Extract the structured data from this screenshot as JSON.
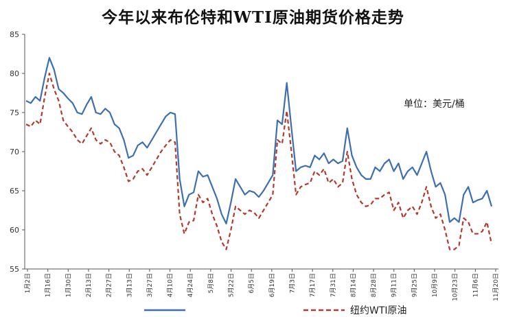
{
  "chart_data": {
    "type": "line",
    "title": "今年以来布伦特和WTI原油期货价格走势",
    "unit_label": "单位：美元/桶",
    "ylim": [
      55,
      85
    ],
    "y_ticks": [
      "55",
      "60",
      "65",
      "70",
      "75",
      "80",
      "85"
    ],
    "x_ticks": [
      "1月2日",
      "1月16日",
      "1月30日",
      "2月13日",
      "2月27日",
      "3月13日",
      "3月27日",
      "4月10日",
      "4月24日",
      "5月8日",
      "5月22日",
      "6月5日",
      "6月19日",
      "7月3日",
      "7月17日",
      "7月31日",
      "8月14日",
      "8月28日",
      "9月11日",
      "9月25日",
      "10月9日",
      "10月23日",
      "11月6日",
      "11月20日"
    ],
    "grid": false,
    "legend_position": "bottom",
    "series": [
      {
        "name": "",
        "color": "#3d6fb0",
        "style": "solid",
        "values": [
          76.5,
          76.2,
          77.0,
          76.5,
          79.5,
          82.0,
          80.5,
          78.0,
          77.5,
          76.8,
          76.2,
          75.0,
          74.8,
          76.0,
          77.0,
          75.0,
          74.8,
          75.5,
          75.0,
          73.5,
          73.0,
          71.5,
          69.2,
          69.5,
          70.8,
          71.2,
          70.5,
          71.5,
          72.5,
          73.5,
          74.5,
          75.0,
          74.8,
          66.5,
          63.0,
          64.5,
          64.8,
          67.5,
          66.8,
          67.0,
          65.5,
          64.0,
          62.0,
          60.8,
          63.5,
          66.5,
          65.5,
          64.5,
          65.0,
          64.8,
          64.2,
          65.0,
          66.0,
          67.0,
          74.0,
          73.5,
          78.8,
          73.0,
          67.5,
          68.0,
          68.2,
          68.0,
          69.5,
          69.0,
          69.8,
          68.5,
          69.0,
          68.5,
          68.8,
          73.0,
          69.5,
          68.0,
          67.0,
          66.5,
          66.5,
          68.0,
          67.5,
          68.5,
          69.0,
          67.5,
          68.5,
          66.5,
          67.5,
          68.0,
          67.0,
          68.5,
          70.0,
          67.5,
          65.5,
          66.0,
          64.5,
          61.0,
          61.5,
          61.0,
          64.5,
          65.5,
          63.5,
          63.8,
          64.0,
          65.0,
          63.0
        ]
      },
      {
        "name": "纽约WTI原油",
        "color": "#b23a2e",
        "style": "dashed",
        "values": [
          73.5,
          73.2,
          74.0,
          73.5,
          77.0,
          80.0,
          78.0,
          76.5,
          74.0,
          73.2,
          72.5,
          71.5,
          71.0,
          72.0,
          73.0,
          71.5,
          71.0,
          71.5,
          71.2,
          70.0,
          69.5,
          68.0,
          66.2,
          66.5,
          67.5,
          67.8,
          67.0,
          68.0,
          69.0,
          70.0,
          70.8,
          71.5,
          71.2,
          62.0,
          59.5,
          61.0,
          61.2,
          64.5,
          63.5,
          64.0,
          62.0,
          60.5,
          58.5,
          57.5,
          60.0,
          63.0,
          62.5,
          62.0,
          62.5,
          62.2,
          61.5,
          62.5,
          63.5,
          64.5,
          71.5,
          71.0,
          75.2,
          70.0,
          64.5,
          65.5,
          65.8,
          66.0,
          67.5,
          67.0,
          67.8,
          66.0,
          66.5,
          65.5,
          66.0,
          70.0,
          66.5,
          64.5,
          63.5,
          63.0,
          63.2,
          64.0,
          64.0,
          64.5,
          64.8,
          62.5,
          63.5,
          61.5,
          62.5,
          63.0,
          62.0,
          63.5,
          65.5,
          63.0,
          61.5,
          62.0,
          60.0,
          57.5,
          57.5,
          58.0,
          61.5,
          61.0,
          59.5,
          59.5,
          59.8,
          61.0,
          58.2
        ]
      }
    ]
  }
}
